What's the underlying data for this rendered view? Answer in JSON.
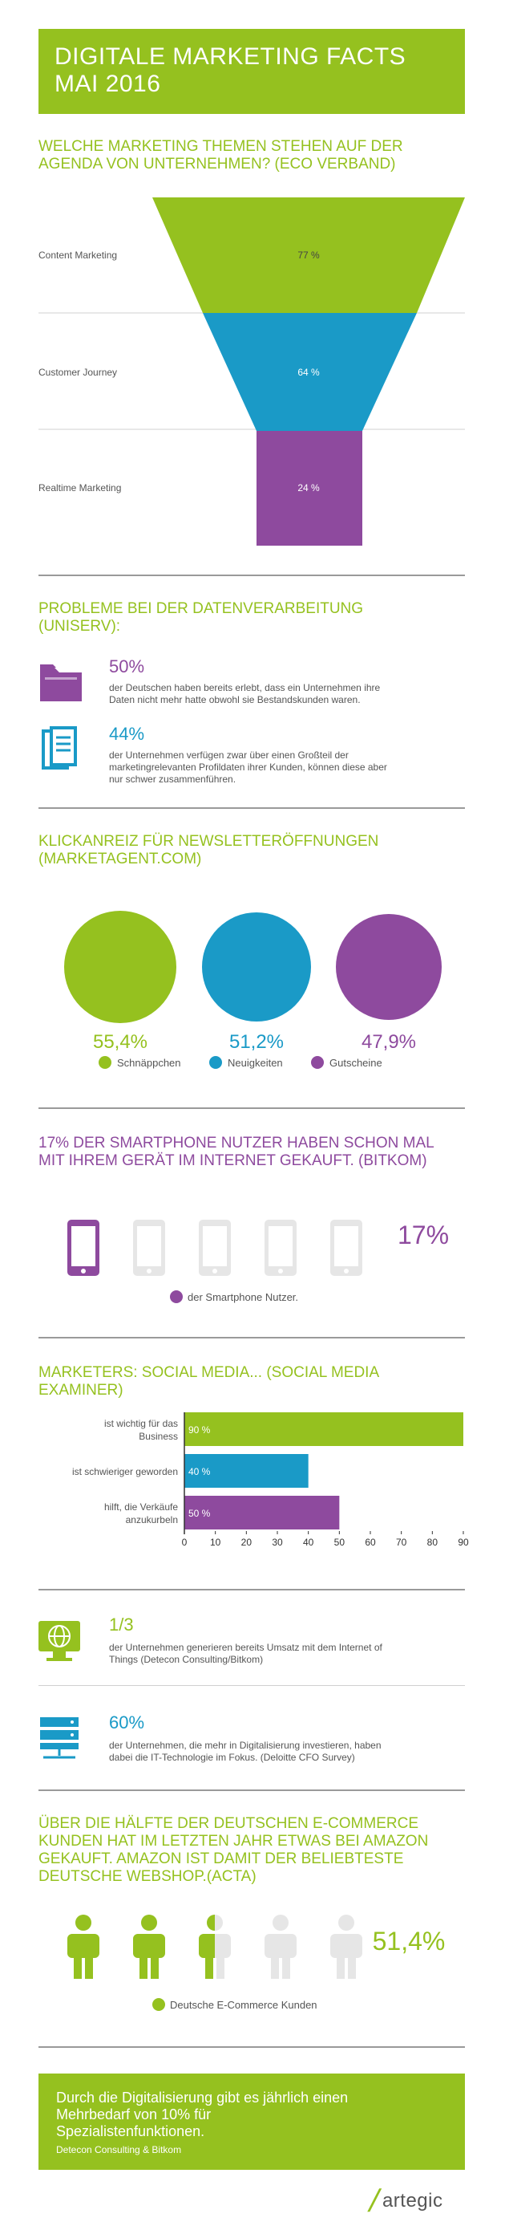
{
  "header": {
    "title_line1": "DIGITALE MARKETING FACTS",
    "title_line2": "MAI 2016"
  },
  "colors": {
    "green": "#95c11f",
    "blue": "#1a9ac7",
    "purple": "#8e4a9e",
    "grey": "#e6e6e6"
  },
  "section1": {
    "title_line1": "WELCHE MARKETING THEMEN STEHEN AUF DER",
    "title_line2": "AGENDA VON UNTERNEHMEN? (ECO VERBAND)",
    "funnel": [
      {
        "label": "Content Marketing",
        "value_text": "77 %",
        "value": 77
      },
      {
        "label": "Customer Journey",
        "value_text": "64 %",
        "value": 64
      },
      {
        "label": "Realtime Marketing",
        "value_text": "24 %",
        "value": 24
      }
    ]
  },
  "section2": {
    "title_line1": "PROBLEME BEI DER DATENVERARBEITUNG",
    "title_line2": "(UNISERV):",
    "items": [
      {
        "icon": "folder-icon",
        "pct": "50%",
        "text_line1": "der Deutschen haben bereits erlebt, dass ein Unternehmen ihre",
        "text_line2": "Daten nicht mehr hatte obwohl sie Bestandskunden waren."
      },
      {
        "icon": "files-icon",
        "pct": "44%",
        "text_line1": "der Unternehmen verfügen zwar über einen Großteil der",
        "text_line2": "marketingrelevanten Profildaten ihrer Kunden, können diese aber",
        "text_line3": "nur schwer zusammenführen."
      }
    ]
  },
  "section3": {
    "title_line1": "KLICKANREIZ FÜR NEWSLETTERÖFFNUNGEN",
    "title_line2": "(MARKETAGENT.COM)",
    "circles": [
      {
        "value_text": "55,4%",
        "label": "Schnäppchen",
        "value": 55.4
      },
      {
        "value_text": "51,2%",
        "label": "Neuigkeiten",
        "value": 51.2
      },
      {
        "value_text": "47,9%",
        "label": "Gutscheine",
        "value": 47.9
      }
    ]
  },
  "section4": {
    "title_line1": "17% DER SMARTPHONE NUTZER HABEN SCHON MAL",
    "title_line2": "MIT IHREM GERÄT IM INTERNET GEKAUFT. (BITKOM)",
    "value_text": "17%",
    "legend": "der Smartphone Nutzer.",
    "phones_total": 5,
    "phones_filled": 1
  },
  "section5": {
    "title_line1": "MARKETERS: SOCIAL MEDIA... (SOCIAL MEDIA",
    "title_line2": "EXAMINER)",
    "chart_data": {
      "type": "bar",
      "orientation": "horizontal",
      "categories": [
        "ist wichtig für das Business",
        "ist schwieriger geworden",
        "hilft, die Verkäufe anzukurbeln"
      ],
      "category_lines": [
        [
          "ist wichtig für das",
          "Business"
        ],
        [
          "ist schwieriger geworden"
        ],
        [
          "hilft, die Verkäufe",
          "anzukurbeln"
        ]
      ],
      "values": [
        90,
        40,
        50
      ],
      "value_labels": [
        "90 %",
        "40 %",
        "50 %"
      ],
      "bar_colors": [
        "#95c11f",
        "#1a9ac7",
        "#8e4a9e"
      ],
      "xlim": [
        0,
        90
      ],
      "xticks": [
        "0",
        "10",
        "20",
        "30",
        "40",
        "50",
        "60",
        "70",
        "80",
        "90"
      ],
      "grid": false
    }
  },
  "section6": {
    "items": [
      {
        "icon": "globe-icon",
        "pct": "1/3",
        "text_line1": "der Unternehmen generieren bereits Umsatz mit dem Internet of",
        "text_line2": "Things (Detecon Consulting/Bitkom)"
      },
      {
        "icon": "server-icon",
        "pct": "60%",
        "text_line1": "der Unternehmen, die mehr in Digitalisierung investieren, haben",
        "text_line2": "dabei die IT-Technologie im Fokus. (Deloitte CFO Survey)"
      }
    ]
  },
  "section7": {
    "title_line1": "ÜBER DIE HÄLFTE DER DEUTSCHEN E-COMMERCE",
    "title_line2": "KUNDEN HAT IM LETZTEN JAHR ETWAS BEI AMAZON",
    "title_line3": "GEKAUFT. AMAZON IST DAMIT DER BELIEBTESTE",
    "title_line4": "DEUTSCHE WEBSHOP.(ACTA)",
    "value_text": "51,4%",
    "legend": "Deutsche E-Commerce Kunden",
    "people_total": 5,
    "people_filled": 2.5
  },
  "footer_box": {
    "line1": "Durch die Digitalisierung gibt es jährlich einen",
    "line2": "Mehrbedarf von 10% für",
    "line3": "Spezialistenfunktionen.",
    "source": "Detecon Consulting & Bitkom"
  },
  "logo": {
    "text": "artegic"
  }
}
